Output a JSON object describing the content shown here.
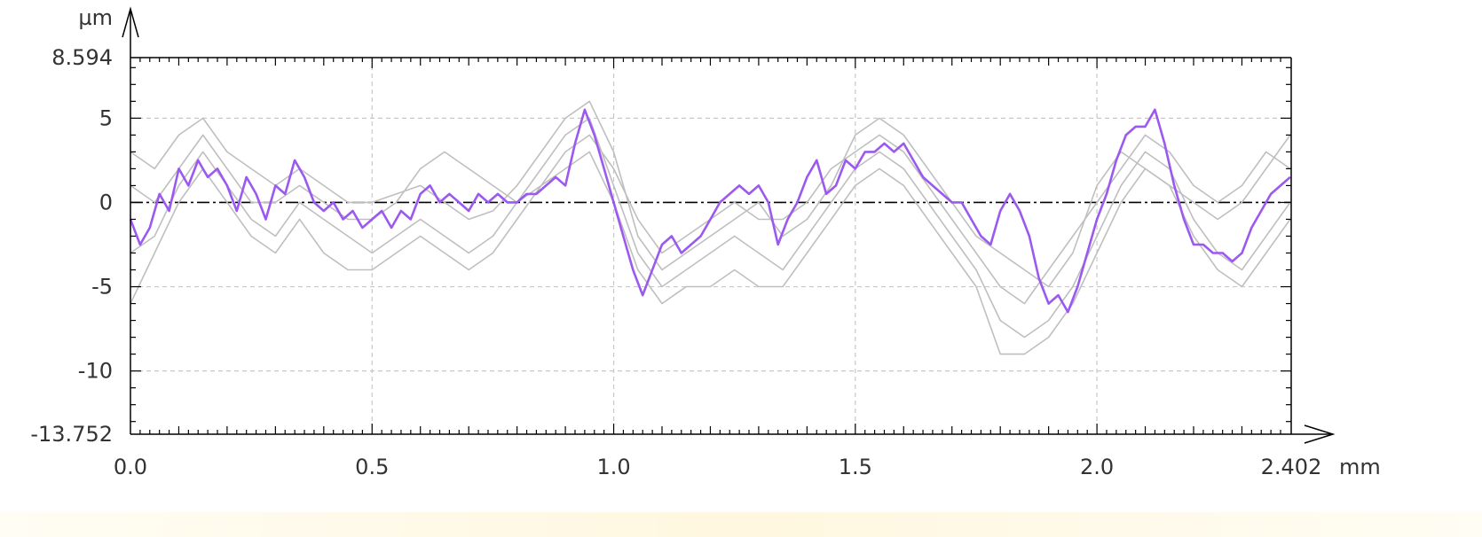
{
  "chart_data": {
    "type": "line",
    "title": "",
    "xlabel": "",
    "ylabel": "",
    "x_unit": "mm",
    "y_unit": "µm",
    "xlim": [
      0,
      2.402
    ],
    "ylim": [
      -13.752,
      8.594
    ],
    "x_ticks": [
      "0.0",
      "0.5",
      "1.0",
      "1.5",
      "2.0",
      "2.402"
    ],
    "y_ticks": [
      "8.594",
      "5",
      "0",
      "-5",
      "-10",
      "-13.752"
    ],
    "grid": true,
    "zero_line": true,
    "highlight_color": "#9b59f0",
    "background_color": "#bfbfbf",
    "series": [
      {
        "role": "highlight",
        "x": [
          0.0,
          0.02,
          0.04,
          0.06,
          0.08,
          0.1,
          0.12,
          0.14,
          0.16,
          0.18,
          0.2,
          0.22,
          0.24,
          0.26,
          0.28,
          0.3,
          0.32,
          0.34,
          0.36,
          0.38,
          0.4,
          0.42,
          0.44,
          0.46,
          0.48,
          0.5,
          0.52,
          0.54,
          0.56,
          0.58,
          0.6,
          0.62,
          0.64,
          0.66,
          0.68,
          0.7,
          0.72,
          0.74,
          0.76,
          0.78,
          0.8,
          0.82,
          0.84,
          0.86,
          0.88,
          0.9,
          0.92,
          0.94,
          0.96,
          0.98,
          1.0,
          1.02,
          1.04,
          1.06,
          1.08,
          1.1,
          1.12,
          1.14,
          1.16,
          1.18,
          1.2,
          1.22,
          1.24,
          1.26,
          1.28,
          1.3,
          1.32,
          1.34,
          1.36,
          1.38,
          1.4,
          1.42,
          1.44,
          1.46,
          1.48,
          1.5,
          1.52,
          1.54,
          1.56,
          1.58,
          1.6,
          1.62,
          1.64,
          1.66,
          1.68,
          1.7,
          1.72,
          1.74,
          1.76,
          1.78,
          1.8,
          1.82,
          1.84,
          1.86,
          1.88,
          1.9,
          1.92,
          1.94,
          1.96,
          1.98,
          2.0,
          2.02,
          2.04,
          2.06,
          2.08,
          2.1,
          2.12,
          2.14,
          2.16,
          2.18,
          2.2,
          2.22,
          2.24,
          2.26,
          2.28,
          2.3,
          2.32,
          2.34,
          2.36,
          2.38,
          2.4
        ],
        "y": [
          -1.0,
          -2.5,
          -1.5,
          0.5,
          -0.5,
          2.0,
          1.0,
          2.5,
          1.5,
          2.0,
          1.0,
          -0.5,
          1.5,
          0.5,
          -1.0,
          1.0,
          0.5,
          2.5,
          1.5,
          0.0,
          -0.5,
          0.0,
          -1.0,
          -0.5,
          -1.5,
          -1.0,
          -0.5,
          -1.5,
          -0.5,
          -1.0,
          0.5,
          1.0,
          0.0,
          0.5,
          0.0,
          -0.5,
          0.5,
          0.0,
          0.5,
          0.0,
          0.0,
          0.5,
          0.5,
          1.0,
          1.5,
          1.0,
          3.5,
          5.5,
          4.0,
          2.0,
          0.0,
          -2.0,
          -4.0,
          -5.5,
          -4.0,
          -2.5,
          -2.0,
          -3.0,
          -2.5,
          -2.0,
          -1.0,
          0.0,
          0.5,
          1.0,
          0.5,
          1.0,
          0.0,
          -2.5,
          -1.0,
          0.0,
          1.5,
          2.5,
          0.5,
          1.0,
          2.5,
          2.0,
          3.0,
          3.0,
          3.5,
          3.0,
          3.5,
          2.5,
          1.5,
          1.0,
          0.5,
          0.0,
          0.0,
          -1.0,
          -2.0,
          -2.5,
          -0.5,
          0.5,
          -0.5,
          -2.0,
          -4.5,
          -6.0,
          -5.5,
          -6.5,
          -5.0,
          -3.0,
          -1.0,
          0.5,
          2.5,
          4.0,
          4.5,
          4.5,
          5.5,
          3.5,
          1.0,
          -1.0,
          -2.5,
          -2.5,
          -3.0,
          -3.0,
          -3.5,
          -3.0,
          -1.5,
          -0.5,
          0.5,
          1.0,
          1.5
        ]
      },
      {
        "role": "background",
        "x": [
          0.0,
          0.05,
          0.1,
          0.15,
          0.2,
          0.25,
          0.3,
          0.35,
          0.4,
          0.45,
          0.5,
          0.55,
          0.6,
          0.65,
          0.7,
          0.75,
          0.8,
          0.85,
          0.9,
          0.95,
          1.0,
          1.05,
          1.1,
          1.15,
          1.2,
          1.25,
          1.3,
          1.35,
          1.4,
          1.45,
          1.5,
          1.55,
          1.6,
          1.65,
          1.7,
          1.75,
          1.8,
          1.85,
          1.9,
          1.95,
          2.0,
          2.05,
          2.1,
          2.15,
          2.2,
          2.25,
          2.3,
          2.35,
          2.4
        ],
        "y": [
          3.0,
          2.0,
          4.0,
          5.0,
          3.0,
          2.0,
          1.0,
          2.0,
          1.0,
          0.0,
          0.0,
          0.5,
          1.0,
          0.0,
          -1.0,
          -0.5,
          1.0,
          3.0,
          5.0,
          6.0,
          3.0,
          -2.0,
          -4.0,
          -3.0,
          -2.0,
          -1.0,
          0.0,
          -2.0,
          -1.0,
          1.0,
          4.0,
          5.0,
          4.0,
          2.0,
          0.0,
          -2.0,
          -3.0,
          -4.0,
          -5.0,
          -3.0,
          1.0,
          3.0,
          2.0,
          1.0,
          0.0,
          -1.0,
          0.0,
          2.0,
          4.0
        ]
      },
      {
        "role": "background",
        "x": [
          0.0,
          0.05,
          0.1,
          0.15,
          0.2,
          0.25,
          0.3,
          0.35,
          0.4,
          0.45,
          0.5,
          0.55,
          0.6,
          0.65,
          0.7,
          0.75,
          0.8,
          0.85,
          0.9,
          0.95,
          1.0,
          1.05,
          1.1,
          1.15,
          1.2,
          1.25,
          1.3,
          1.35,
          1.4,
          1.45,
          1.5,
          1.55,
          1.6,
          1.65,
          1.7,
          1.75,
          1.8,
          1.85,
          1.9,
          1.95,
          2.0,
          2.05,
          2.1,
          2.15,
          2.2,
          2.25,
          2.3,
          2.35,
          2.4
        ],
        "y": [
          -3.0,
          -2.0,
          1.0,
          3.0,
          1.0,
          -1.0,
          -2.0,
          0.0,
          -1.0,
          -2.0,
          -3.0,
          -2.0,
          -1.0,
          -2.0,
          -3.0,
          -2.0,
          0.0,
          2.0,
          4.0,
          5.0,
          1.0,
          -3.0,
          -5.0,
          -4.0,
          -3.0,
          -2.0,
          -3.0,
          -4.0,
          -2.0,
          0.0,
          2.0,
          3.0,
          2.0,
          0.0,
          -2.0,
          -4.0,
          -7.0,
          -8.0,
          -7.0,
          -5.0,
          -2.0,
          1.0,
          3.0,
          2.0,
          -1.0,
          -3.0,
          -4.0,
          -2.0,
          0.0
        ]
      },
      {
        "role": "background",
        "x": [
          0.0,
          0.05,
          0.1,
          0.15,
          0.2,
          0.25,
          0.3,
          0.35,
          0.4,
          0.45,
          0.5,
          0.55,
          0.6,
          0.65,
          0.7,
          0.75,
          0.8,
          0.85,
          0.9,
          0.95,
          1.0,
          1.05,
          1.1,
          1.15,
          1.2,
          1.25,
          1.3,
          1.35,
          1.4,
          1.45,
          1.5,
          1.55,
          1.6,
          1.65,
          1.7,
          1.75,
          1.8,
          1.85,
          1.9,
          1.95,
          2.0,
          2.05,
          2.1,
          2.15,
          2.2,
          2.25,
          2.3,
          2.35,
          2.4
        ],
        "y": [
          1.0,
          0.0,
          2.0,
          4.0,
          2.0,
          0.0,
          0.0,
          1.0,
          0.0,
          -1.0,
          -1.0,
          0.0,
          2.0,
          3.0,
          2.0,
          1.0,
          0.0,
          1.0,
          3.0,
          4.0,
          2.0,
          -1.0,
          -3.0,
          -2.0,
          -1.0,
          0.0,
          -1.0,
          -1.0,
          0.0,
          2.0,
          3.0,
          4.0,
          3.0,
          1.0,
          -1.0,
          -3.0,
          -5.0,
          -6.0,
          -4.0,
          -2.0,
          0.0,
          2.0,
          4.0,
          3.0,
          1.0,
          0.0,
          1.0,
          3.0,
          2.0
        ]
      },
      {
        "role": "background",
        "x": [
          0.0,
          0.05,
          0.1,
          0.15,
          0.2,
          0.25,
          0.3,
          0.35,
          0.4,
          0.45,
          0.5,
          0.55,
          0.6,
          0.65,
          0.7,
          0.75,
          0.8,
          0.85,
          0.9,
          0.95,
          1.0,
          1.05,
          1.1,
          1.15,
          1.2,
          1.25,
          1.3,
          1.35,
          1.4,
          1.45,
          1.5,
          1.55,
          1.6,
          1.65,
          1.7,
          1.75,
          1.8,
          1.85,
          1.9,
          1.95,
          2.0,
          2.05,
          2.1,
          2.15,
          2.2,
          2.25,
          2.3,
          2.35,
          2.4
        ],
        "y": [
          -6.0,
          -3.0,
          0.0,
          2.0,
          0.0,
          -2.0,
          -3.0,
          -1.0,
          -3.0,
          -4.0,
          -4.0,
          -3.0,
          -2.0,
          -3.0,
          -4.0,
          -3.0,
          -1.0,
          1.0,
          2.0,
          3.0,
          0.0,
          -4.0,
          -6.0,
          -5.0,
          -5.0,
          -4.0,
          -5.0,
          -5.0,
          -3.0,
          -1.0,
          1.0,
          2.0,
          1.0,
          -1.0,
          -3.0,
          -5.0,
          -9.0,
          -9.0,
          -8.0,
          -6.0,
          -3.0,
          0.0,
          2.0,
          1.0,
          -2.0,
          -4.0,
          -5.0,
          -3.0,
          -1.0
        ]
      }
    ]
  }
}
